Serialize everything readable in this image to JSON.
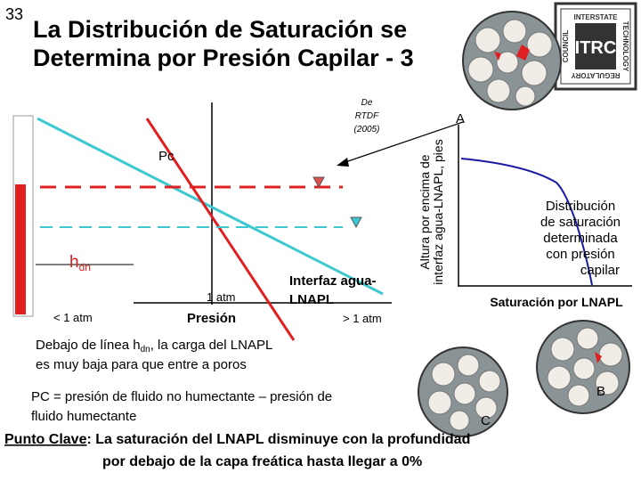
{
  "header": {
    "slide_number": "33",
    "title": [
      "La Distribución de Saturación se",
      "Determina por Presión Capilar - 3"
    ],
    "logo": {
      "main": "ITRC",
      "top": "INTERSTATE",
      "right": "TECHNOLOGY",
      "bottom": "REGULATORY",
      "left": "COUNCIL"
    }
  },
  "left_diagram": {
    "citation": [
      "De",
      "RTDF",
      "(2005)"
    ],
    "pc_label": "Pc",
    "hdn": {
      "base": "h",
      "sub": "dn"
    },
    "one_atm": "1 atm",
    "less_atm": "< 1 atm",
    "x_label": "Presión",
    "interface": [
      "Interfaz agua-",
      "LNAPL"
    ],
    "more_atm": "> 1 atm",
    "caption": {
      "before": "Debajo de línea h",
      "sub": "dn",
      "after": ", la carga del LNAPL",
      "line2": "es muy baja para que entre a poros"
    }
  },
  "right_chart": {
    "y_label": [
      "Altura por encima de",
      "interfaz agua-LNAPL, pies"
    ],
    "point_a": "A",
    "curve_label": [
      "Distribución",
      "de saturación",
      "determinada",
      "con presión",
      "capilar"
    ],
    "x_label": "Saturación por LNAPL",
    "point_b": "B",
    "point_c": "C"
  },
  "notes": {
    "definition": [
      "PC = presión de fluido no humectante – presión de",
      "fluido humectante"
    ]
  },
  "key_point": {
    "label": "Punto Clave",
    "line1": ": La saturación del LNAPL disminuye con la profundidad",
    "line2": "por debajo de la capa freática hasta llegar a 0%"
  }
}
